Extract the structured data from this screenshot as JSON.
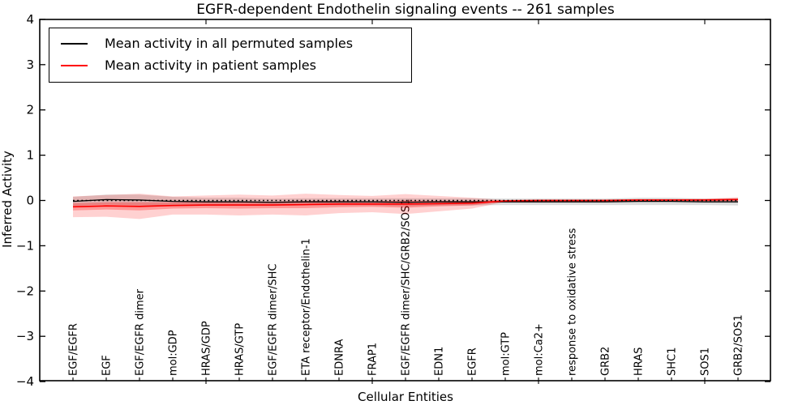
{
  "chart_data": {
    "type": "line",
    "title": "EGFR-dependent Endothelin signaling events -- 261 samples",
    "xlabel": "Cellular Entities",
    "ylabel": "Inferred Activity",
    "ylim": [
      -4,
      4
    ],
    "ytick_labels": [
      "−4",
      "−3",
      "−2",
      "−1",
      "0",
      "1",
      "2",
      "3",
      "4"
    ],
    "ytick_values": [
      -4,
      -3,
      -2,
      -1,
      0,
      1,
      2,
      3,
      4
    ],
    "grid": false,
    "legend_position": "upper left",
    "zero_reference_line": {
      "value": 0,
      "style": "dotted",
      "color": "#000000"
    },
    "categories": [
      "EGF/EGFR",
      "EGF",
      "EGF/EGFR dimer",
      "mol:GDP",
      "HRAS/GDP",
      "HRAS/GTP",
      "EGF/EGFR dimer/SHC",
      "ETA receptor/Endothelin-1",
      "EDNRA",
      "FRAP1",
      "EGF/EGFR dimer/SHC/GRB2/SOS1",
      "EDN1",
      "EGFR",
      "mol:GTP",
      "mol:Ca2+",
      "response to oxidative stress",
      "GRB2",
      "HRAS",
      "SHC1",
      "SOS1",
      "GRB2/SOS1"
    ],
    "series": [
      {
        "name": "Mean activity in all permuted samples",
        "color": "#000000",
        "band_color": "rgba(0,0,0,0.14)",
        "values": [
          -0.02,
          0.02,
          0.01,
          -0.02,
          -0.03,
          -0.03,
          -0.04,
          -0.03,
          -0.03,
          -0.03,
          -0.04,
          -0.03,
          -0.03,
          -0.03,
          -0.03,
          -0.03,
          -0.03,
          -0.02,
          -0.02,
          -0.03,
          -0.03
        ],
        "band_halfwidth": [
          0.1,
          0.11,
          0.12,
          0.1,
          0.09,
          0.09,
          0.08,
          0.08,
          0.08,
          0.08,
          0.09,
          0.08,
          0.08,
          0.07,
          0.07,
          0.07,
          0.07,
          0.08,
          0.08,
          0.07,
          0.08
        ]
      },
      {
        "name": "Mean activity in patient samples",
        "color": "#ff0000",
        "band_outer_color": "rgba(255,0,0,0.18)",
        "band_inner_color": "rgba(255,0,0,0.28)",
        "values": [
          -0.14,
          -0.12,
          -0.13,
          -0.11,
          -0.1,
          -0.1,
          -0.1,
          -0.09,
          -0.08,
          -0.08,
          -0.08,
          -0.07,
          -0.06,
          -0.01,
          0.0,
          0.0,
          0.0,
          0.01,
          0.01,
          0.01,
          0.02
        ],
        "band_outer_halfwidth": [
          0.23,
          0.24,
          0.28,
          0.2,
          0.21,
          0.23,
          0.21,
          0.24,
          0.2,
          0.18,
          0.22,
          0.17,
          0.12,
          0.02,
          0.02,
          0.02,
          0.02,
          0.02,
          0.02,
          0.03,
          0.05
        ],
        "band_inner_halfwidth": [
          0.08,
          0.08,
          0.09,
          0.07,
          0.07,
          0.08,
          0.07,
          0.08,
          0.07,
          0.06,
          0.08,
          0.06,
          0.05,
          0.02,
          0.02,
          0.02,
          0.02,
          0.02,
          0.02,
          0.02,
          0.03
        ]
      }
    ]
  }
}
